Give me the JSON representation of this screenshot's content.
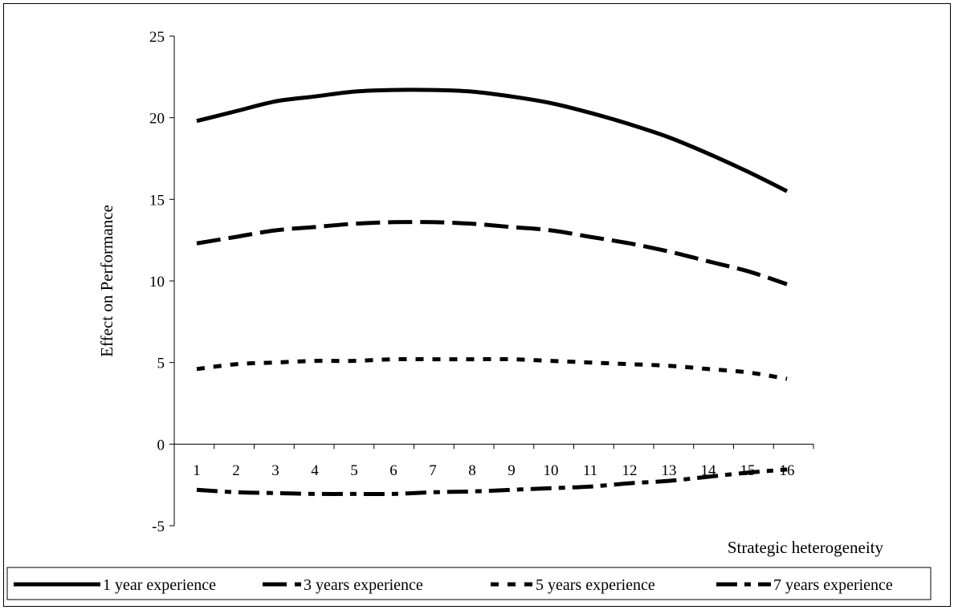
{
  "chart_data": {
    "type": "line",
    "title": "",
    "xlabel": "Strategic heterogeneity",
    "ylabel": "Effect on  Performance",
    "categories": [
      "1",
      "2",
      "3",
      "4",
      "5",
      "6",
      "7",
      "8",
      "9",
      "10",
      "11",
      "12",
      "13",
      "14",
      "15",
      "16"
    ],
    "ylim": [
      -5,
      25
    ],
    "yticks": [
      -5,
      0,
      5,
      10,
      15,
      20,
      25
    ],
    "grid": false,
    "legend_position": "bottom",
    "series": [
      {
        "name": "1 year experience",
        "style": "solid",
        "values": [
          19.8,
          20.4,
          21.0,
          21.3,
          21.6,
          21.7,
          21.7,
          21.6,
          21.3,
          20.9,
          20.3,
          19.6,
          18.8,
          17.8,
          16.7,
          15.5
        ]
      },
      {
        "name": "3 years experience",
        "style": "long-dash",
        "values": [
          12.3,
          12.7,
          13.1,
          13.3,
          13.5,
          13.6,
          13.6,
          13.5,
          13.3,
          13.1,
          12.7,
          12.3,
          11.8,
          11.2,
          10.6,
          9.8
        ]
      },
      {
        "name": "5 years experience",
        "style": "short-dash",
        "values": [
          4.6,
          4.9,
          5.0,
          5.1,
          5.1,
          5.2,
          5.2,
          5.2,
          5.2,
          5.1,
          5.0,
          4.9,
          4.8,
          4.6,
          4.4,
          4.0
        ]
      },
      {
        "name": "7 years experience",
        "style": "dash-dot",
        "values": [
          -2.8,
          -2.95,
          -3.0,
          -3.05,
          -3.05,
          -3.05,
          -2.95,
          -2.9,
          -2.8,
          -2.7,
          -2.6,
          -2.4,
          -2.25,
          -2.0,
          -1.75,
          -1.55
        ]
      }
    ],
    "colors": {
      "line": "#000000",
      "background": "#ffffff"
    }
  }
}
